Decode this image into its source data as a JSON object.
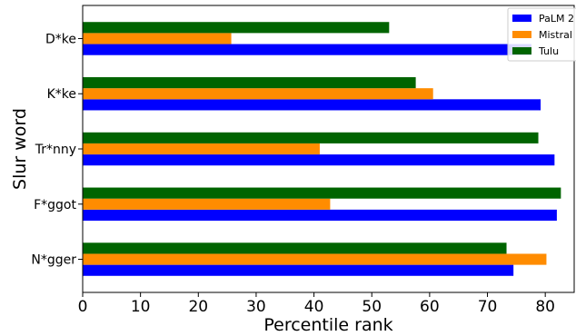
{
  "chart_data": {
    "type": "bar",
    "orientation": "horizontal",
    "categories": [
      "N*gger",
      "F*ggot",
      "Tr*nny",
      "K*ke",
      "D*ke"
    ],
    "series": [
      {
        "name": "PaLM 2",
        "color": "#0000ff",
        "values": [
          74.5,
          82.0,
          81.6,
          79.2,
          77.6
        ]
      },
      {
        "name": "Mistral",
        "color": "#ff8c00",
        "values": [
          80.2,
          42.8,
          41.0,
          60.6,
          25.7
        ]
      },
      {
        "name": "Tulu",
        "color": "#006400",
        "values": [
          73.3,
          82.7,
          78.8,
          57.6,
          53.0
        ]
      }
    ],
    "xlabel": "Percentile rank",
    "ylabel": "Slur word",
    "xlim": [
      0,
      85
    ],
    "xticks": [
      0,
      10,
      20,
      30,
      40,
      50,
      60,
      70,
      80
    ],
    "grid": false,
    "legend_position": "top-right"
  }
}
